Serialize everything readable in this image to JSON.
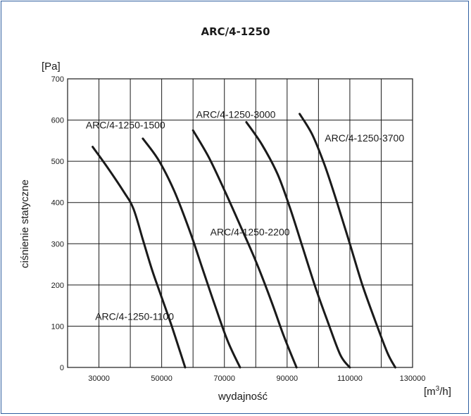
{
  "chart_data": {
    "type": "line",
    "title": "ARC/4-1250",
    "xlabel": "wydajność",
    "ylabel": "ciśnienie statyczne",
    "yunit": "[Pa]",
    "xunit": {
      "base": "[m",
      "sup": "3",
      "tail": "/h]"
    },
    "xlim": [
      20000,
      130000
    ],
    "ylim": [
      0,
      700
    ],
    "xticks": [
      30000,
      50000,
      70000,
      90000,
      110000,
      130000
    ],
    "yticks": [
      0,
      100,
      200,
      300,
      400,
      500,
      600,
      700
    ],
    "x_gridlines": [
      20000,
      30000,
      40000,
      50000,
      60000,
      70000,
      80000,
      90000,
      100000,
      110000,
      120000,
      130000
    ],
    "y_gridlines": [
      0,
      100,
      200,
      300,
      400,
      500,
      600,
      700
    ],
    "grid": true,
    "series": [
      {
        "name": "ARC/4-1250-1100",
        "points": [
          [
            28000,
            535
          ],
          [
            33000,
            482
          ],
          [
            38000,
            425
          ],
          [
            41000,
            385
          ],
          [
            44000,
            310
          ],
          [
            47000,
            235
          ],
          [
            50000,
            170
          ],
          [
            53000,
            105
          ],
          [
            56000,
            35
          ],
          [
            57500,
            0
          ]
        ],
        "label_at": [
          28800,
          115
        ]
      },
      {
        "name": "ARC/4-1250-1500",
        "points": [
          [
            44000,
            555
          ],
          [
            49000,
            503
          ],
          [
            54000,
            428
          ],
          [
            59000,
            330
          ],
          [
            63000,
            240
          ],
          [
            67000,
            150
          ],
          [
            71000,
            65
          ],
          [
            75000,
            0
          ]
        ],
        "label_at": [
          25800,
          580
        ]
      },
      {
        "name": "ARC/4-1250-2200",
        "points": [
          [
            60000,
            575
          ],
          [
            65000,
            510
          ],
          [
            70000,
            430
          ],
          [
            75000,
            345
          ],
          [
            80000,
            258
          ],
          [
            85000,
            160
          ],
          [
            89000,
            75
          ],
          [
            93000,
            0
          ]
        ],
        "label_at": [
          65500,
          320
        ]
      },
      {
        "name": "ARC/4-1250-3000",
        "points": [
          [
            77000,
            595
          ],
          [
            82000,
            540
          ],
          [
            87000,
            468
          ],
          [
            91000,
            385
          ],
          [
            95000,
            290
          ],
          [
            99000,
            195
          ],
          [
            103000,
            110
          ],
          [
            107000,
            30
          ],
          [
            110000,
            0
          ]
        ],
        "label_at": [
          61000,
          605
        ]
      },
      {
        "name": "ARC/4-1250-3700",
        "points": [
          [
            94000,
            615
          ],
          [
            98000,
            565
          ],
          [
            102000,
            490
          ],
          [
            106000,
            398
          ],
          [
            110000,
            300
          ],
          [
            114000,
            200
          ],
          [
            118000,
            115
          ],
          [
            122000,
            35
          ],
          [
            124500,
            0
          ]
        ],
        "label_at": [
          102000,
          548
        ]
      }
    ],
    "colors": {
      "line": "#1a1a1a",
      "grid": "#1a1a1a",
      "frame": "#2f5fa0"
    }
  }
}
